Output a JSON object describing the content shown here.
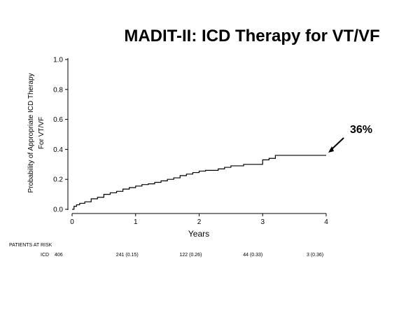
{
  "chart_data": {
    "type": "line",
    "title": "MADIT-II: ICD Therapy for VT/VF",
    "xlabel": "Years",
    "ylabel_lines": [
      "Probability of Appropriate ICD Therapy",
      "For VT/VF"
    ],
    "xlim": [
      0,
      4
    ],
    "ylim": [
      0,
      1.0
    ],
    "x_ticks": [
      0,
      1,
      2,
      3,
      4
    ],
    "y_ticks": [
      0.0,
      0.2,
      0.4,
      0.6,
      0.8,
      1.0
    ],
    "y_tick_labels": [
      "0.0",
      "0.2",
      "0.4",
      "0.6",
      "0.8",
      "1.0"
    ],
    "x_tick_labels": [
      "0",
      "1",
      "2",
      "3",
      "4"
    ],
    "grid": false,
    "series": [
      {
        "color": "#000000",
        "step": true,
        "x": [
          0,
          0.03,
          0.07,
          0.12,
          0.2,
          0.3,
          0.4,
          0.5,
          0.6,
          0.7,
          0.8,
          0.9,
          1.0,
          1.1,
          1.2,
          1.3,
          1.4,
          1.5,
          1.6,
          1.7,
          1.8,
          1.9,
          2.0,
          2.1,
          2.2,
          2.3,
          2.4,
          2.5,
          2.6,
          2.7,
          2.8,
          2.9,
          3.0,
          3.1,
          3.2,
          3.3,
          3.5,
          4.0
        ],
        "y": [
          0,
          0.02,
          0.03,
          0.04,
          0.05,
          0.07,
          0.08,
          0.1,
          0.11,
          0.12,
          0.135,
          0.145,
          0.155,
          0.165,
          0.17,
          0.18,
          0.19,
          0.2,
          0.21,
          0.225,
          0.235,
          0.245,
          0.255,
          0.26,
          0.26,
          0.27,
          0.28,
          0.29,
          0.29,
          0.3,
          0.3,
          0.3,
          0.33,
          0.34,
          0.36,
          0.36,
          0.36,
          0.36
        ]
      }
    ],
    "annotation": {
      "text": "36%",
      "x": 4.0,
      "y": 0.36
    }
  },
  "risk_table": {
    "header": "PATIENTS AT RISK",
    "row_label": "ICD",
    "entries": [
      {
        "x": 0,
        "text": "406"
      },
      {
        "x": 1,
        "text": "241 (0.15)"
      },
      {
        "x": 2,
        "text": "122 (0.26)"
      },
      {
        "x": 3,
        "text": "44 (0.33)"
      },
      {
        "x": 4,
        "text": "3 (0.36)"
      }
    ]
  }
}
